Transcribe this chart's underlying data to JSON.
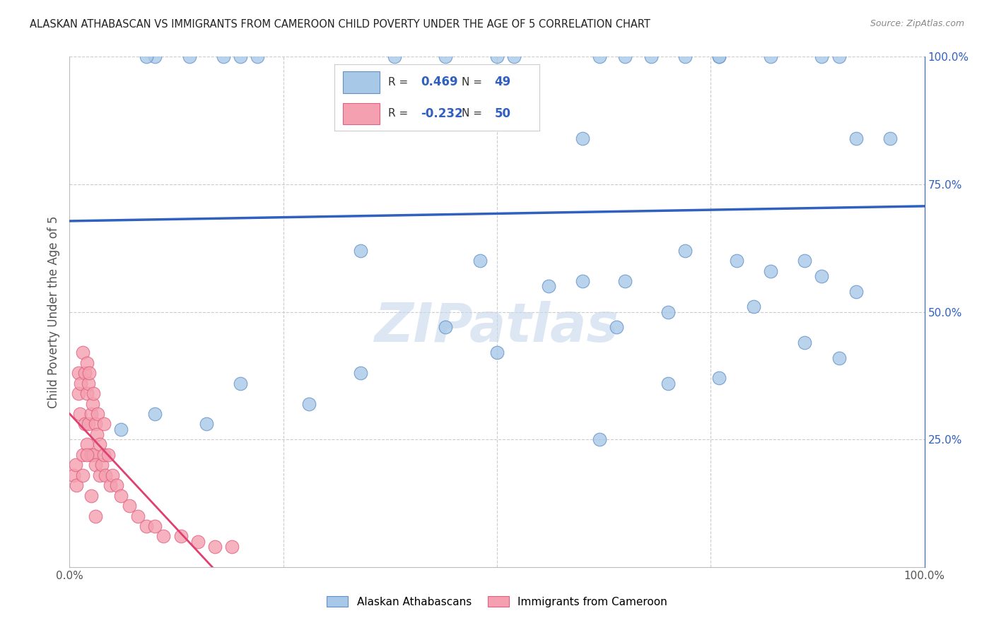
{
  "title": "ALASKAN ATHABASCAN VS IMMIGRANTS FROM CAMEROON CHILD POVERTY UNDER THE AGE OF 5 CORRELATION CHART",
  "source": "Source: ZipAtlas.com",
  "ylabel": "Child Poverty Under the Age of 5",
  "xlim": [
    0.0,
    1.0
  ],
  "ylim": [
    0.0,
    1.0
  ],
  "blue_R": 0.469,
  "blue_N": 49,
  "pink_R": -0.232,
  "pink_N": 50,
  "blue_scatter_color": "#a8c8e8",
  "pink_scatter_color": "#f4a0b0",
  "blue_edge_color": "#6090c8",
  "pink_edge_color": "#e06080",
  "blue_line_color": "#3060c0",
  "pink_line_color": "#e04070",
  "watermark": "ZIPatlas",
  "background_color": "#ffffff",
  "grid_color": "#cccccc",
  "blue_scatter_x": [
    0.1,
    0.18,
    0.09,
    0.14,
    0.22,
    0.2,
    0.38,
    0.44,
    0.5,
    0.52,
    0.6,
    0.62,
    0.65,
    0.68,
    0.72,
    0.76,
    0.76,
    0.82,
    0.88,
    0.9,
    0.92,
    0.96,
    0.34,
    0.48,
    0.56,
    0.6,
    0.65,
    0.72,
    0.78,
    0.82,
    0.86,
    0.88,
    0.92,
    0.64,
    0.7,
    0.8,
    0.86,
    0.9,
    0.7,
    0.76,
    0.5,
    0.44,
    0.34,
    0.28,
    0.2,
    0.16,
    0.1,
    0.06,
    0.62
  ],
  "blue_scatter_y": [
    1.0,
    1.0,
    1.0,
    1.0,
    1.0,
    1.0,
    1.0,
    1.0,
    1.0,
    1.0,
    0.84,
    1.0,
    1.0,
    1.0,
    1.0,
    1.0,
    1.0,
    1.0,
    1.0,
    1.0,
    0.84,
    0.84,
    0.62,
    0.6,
    0.55,
    0.56,
    0.56,
    0.62,
    0.6,
    0.58,
    0.6,
    0.57,
    0.54,
    0.47,
    0.5,
    0.51,
    0.44,
    0.41,
    0.36,
    0.37,
    0.42,
    0.47,
    0.38,
    0.32,
    0.36,
    0.28,
    0.3,
    0.27,
    0.25
  ],
  "pink_scatter_x": [
    0.005,
    0.007,
    0.008,
    0.01,
    0.01,
    0.012,
    0.013,
    0.015,
    0.015,
    0.018,
    0.018,
    0.02,
    0.02,
    0.02,
    0.022,
    0.022,
    0.023,
    0.025,
    0.025,
    0.027,
    0.028,
    0.028,
    0.03,
    0.03,
    0.032,
    0.033,
    0.035,
    0.035,
    0.038,
    0.04,
    0.04,
    0.042,
    0.045,
    0.048,
    0.05,
    0.055,
    0.06,
    0.07,
    0.08,
    0.09,
    0.1,
    0.11,
    0.13,
    0.15,
    0.17,
    0.19,
    0.015,
    0.02,
    0.025,
    0.03
  ],
  "pink_scatter_y": [
    0.18,
    0.2,
    0.16,
    0.38,
    0.34,
    0.3,
    0.36,
    0.42,
    0.22,
    0.38,
    0.28,
    0.4,
    0.34,
    0.24,
    0.36,
    0.28,
    0.38,
    0.3,
    0.22,
    0.32,
    0.34,
    0.22,
    0.28,
    0.2,
    0.26,
    0.3,
    0.24,
    0.18,
    0.2,
    0.28,
    0.22,
    0.18,
    0.22,
    0.16,
    0.18,
    0.16,
    0.14,
    0.12,
    0.1,
    0.08,
    0.08,
    0.06,
    0.06,
    0.05,
    0.04,
    0.04,
    0.18,
    0.22,
    0.14,
    0.1
  ]
}
